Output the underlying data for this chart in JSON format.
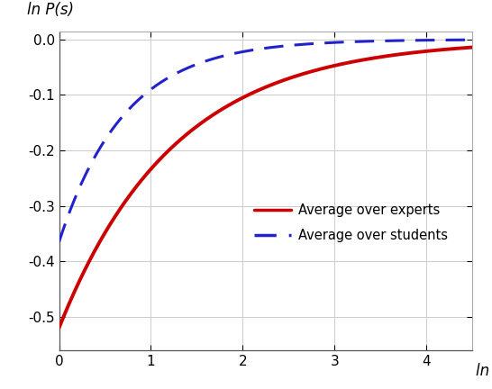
{
  "title": "",
  "xlabel": "ln s",
  "ylabel": "ln P(s)",
  "xlim": [
    0,
    4.5
  ],
  "ylim": [
    -0.56,
    0.015
  ],
  "yticks": [
    0,
    -0.1,
    -0.2,
    -0.3,
    -0.4,
    -0.5
  ],
  "xticks": [
    0,
    1,
    2,
    3,
    4
  ],
  "experts_color": "#cc0000",
  "students_color": "#2222cc",
  "experts_label": "Average over experts",
  "students_label": "Average over students",
  "background_color": "#ffffff",
  "grid_color": "#cccccc",
  "experts_A": 0.52,
  "experts_k": 0.8,
  "students_A": 0.365,
  "students_k": 1.4,
  "linewidth_experts": 2.8,
  "linewidth_students": 2.2
}
